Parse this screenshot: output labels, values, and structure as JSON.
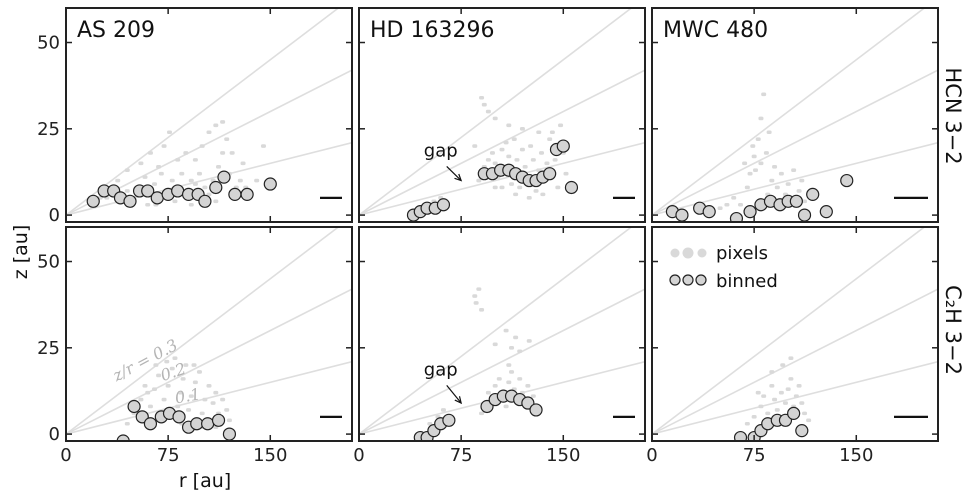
{
  "figure": {
    "xlabel": "r [au]",
    "ylabel": "z [au]",
    "row_labels": [
      "HCN 3−2",
      "C₂H 3−2"
    ],
    "legend": {
      "pixels": "pixels",
      "binned": "binned"
    },
    "colors": {
      "pixels": "#d9d9d9",
      "lines": "#dedede",
      "binned_fill": "#d4d4d4",
      "binned_edge": "#222222",
      "frame": "#222222"
    }
  },
  "chart_data": [
    {
      "type": "scatter",
      "title": "AS 209",
      "row": "HCN 3−2",
      "xlim": [
        0,
        210
      ],
      "ylim": [
        -2,
        60
      ],
      "xticks": [
        0,
        75,
        150
      ],
      "yticks": [
        0,
        25,
        50
      ],
      "ratio_lines": [
        0.1,
        0.2,
        0.3
      ],
      "binned": [
        [
          20,
          4
        ],
        [
          28,
          7
        ],
        [
          35,
          7
        ],
        [
          40,
          5
        ],
        [
          47,
          4
        ],
        [
          54,
          7
        ],
        [
          60,
          7
        ],
        [
          67,
          5
        ],
        [
          75,
          6
        ],
        [
          82,
          7
        ],
        [
          90,
          6
        ],
        [
          97,
          6
        ],
        [
          102,
          4
        ],
        [
          110,
          8
        ],
        [
          116,
          11
        ],
        [
          124,
          6
        ],
        [
          133,
          6
        ],
        [
          150,
          9
        ]
      ],
      "pixels": [
        [
          25,
          5
        ],
        [
          30,
          5
        ],
        [
          40,
          6
        ],
        [
          45,
          7
        ],
        [
          50,
          5
        ],
        [
          55,
          8
        ],
        [
          60,
          6
        ],
        [
          65,
          9
        ],
        [
          70,
          6
        ],
        [
          75,
          5
        ],
        [
          78,
          10
        ],
        [
          80,
          8
        ],
        [
          85,
          6
        ],
        [
          90,
          7
        ],
        [
          95,
          9
        ],
        [
          98,
          12
        ],
        [
          102,
          8
        ],
        [
          105,
          6
        ],
        [
          108,
          10
        ],
        [
          112,
          14
        ],
        [
          115,
          18
        ],
        [
          118,
          22
        ],
        [
          120,
          12
        ],
        [
          125,
          8
        ],
        [
          130,
          15
        ],
        [
          135,
          6
        ],
        [
          140,
          10
        ],
        [
          145,
          20
        ],
        [
          55,
          15
        ],
        [
          62,
          18
        ],
        [
          68,
          14
        ],
        [
          72,
          20
        ],
        [
          76,
          24
        ],
        [
          82,
          16
        ],
        [
          88,
          18
        ],
        [
          95,
          16
        ],
        [
          100,
          20
        ],
        [
          105,
          24
        ],
        [
          110,
          26
        ],
        [
          115,
          27
        ],
        [
          85,
          12
        ],
        [
          70,
          12
        ],
        [
          92,
          10
        ],
        [
          45,
          13
        ],
        [
          38,
          10
        ],
        [
          58,
          11
        ],
        [
          122,
          18
        ],
        [
          128,
          10
        ],
        [
          132,
          8
        ],
        [
          60,
          3
        ],
        [
          66,
          3
        ],
        [
          80,
          4
        ],
        [
          92,
          3
        ],
        [
          100,
          3
        ],
        [
          110,
          4
        ]
      ],
      "annotations": []
    },
    {
      "type": "scatter",
      "title": "HD 163296",
      "row": "HCN 3−2",
      "xlim": [
        0,
        210
      ],
      "ylim": [
        -2,
        60
      ],
      "xticks": [
        0,
        75,
        150
      ],
      "yticks": [
        0,
        25,
        50
      ],
      "ratio_lines": [
        0.1,
        0.2,
        0.3
      ],
      "binned": [
        [
          40,
          0
        ],
        [
          45,
          1
        ],
        [
          50,
          2
        ],
        [
          56,
          2
        ],
        [
          62,
          3
        ],
        [
          92,
          12
        ],
        [
          98,
          12
        ],
        [
          104,
          13
        ],
        [
          110,
          13
        ],
        [
          115,
          12
        ],
        [
          120,
          11
        ],
        [
          125,
          10
        ],
        [
          130,
          10
        ],
        [
          135,
          11
        ],
        [
          140,
          12
        ],
        [
          145,
          19
        ],
        [
          150,
          20
        ],
        [
          156,
          8
        ]
      ],
      "pixels": [
        [
          42,
          1
        ],
        [
          48,
          2
        ],
        [
          55,
          4
        ],
        [
          60,
          5
        ],
        [
          65,
          3
        ],
        [
          88,
          10
        ],
        [
          92,
          14
        ],
        [
          95,
          16
        ],
        [
          98,
          18
        ],
        [
          100,
          15
        ],
        [
          102,
          11
        ],
        [
          105,
          19
        ],
        [
          108,
          21
        ],
        [
          110,
          17
        ],
        [
          112,
          9
        ],
        [
          114,
          22
        ],
        [
          116,
          16
        ],
        [
          118,
          8
        ],
        [
          120,
          19
        ],
        [
          122,
          14
        ],
        [
          124,
          10
        ],
        [
          126,
          20
        ],
        [
          128,
          16
        ],
        [
          130,
          7
        ],
        [
          132,
          13
        ],
        [
          134,
          18
        ],
        [
          136,
          11
        ],
        [
          138,
          15
        ],
        [
          140,
          22
        ],
        [
          142,
          24
        ],
        [
          144,
          16
        ],
        [
          146,
          8
        ],
        [
          148,
          26
        ],
        [
          150,
          18
        ],
        [
          152,
          12
        ],
        [
          135,
          6
        ],
        [
          125,
          5
        ],
        [
          115,
          6
        ],
        [
          105,
          8
        ],
        [
          100,
          8
        ],
        [
          90,
          34
        ],
        [
          92,
          32
        ],
        [
          95,
          30
        ],
        [
          100,
          28
        ],
        [
          85,
          20
        ],
        [
          110,
          26
        ],
        [
          120,
          25
        ],
        [
          132,
          24
        ]
      ],
      "annotations": [
        {
          "text": "gap",
          "tx": 60,
          "ty": 17,
          "ax": 75,
          "ay": 10
        }
      ]
    },
    {
      "type": "scatter",
      "title": "MWC 480",
      "row": "HCN 3−2",
      "xlim": [
        0,
        210
      ],
      "ylim": [
        -2,
        60
      ],
      "xticks": [
        0,
        75,
        150
      ],
      "yticks": [
        0,
        25,
        50
      ],
      "ratio_lines": [
        0.1,
        0.2,
        0.3
      ],
      "binned": [
        [
          15,
          1
        ],
        [
          22,
          0
        ],
        [
          35,
          2
        ],
        [
          42,
          1
        ],
        [
          62,
          -1
        ],
        [
          72,
          1
        ],
        [
          80,
          3
        ],
        [
          87,
          4
        ],
        [
          94,
          3
        ],
        [
          100,
          4
        ],
        [
          106,
          4
        ],
        [
          112,
          0
        ],
        [
          118,
          6
        ],
        [
          128,
          1
        ],
        [
          143,
          10
        ]
      ],
      "pixels": [
        [
          60,
          5
        ],
        [
          65,
          3
        ],
        [
          70,
          8
        ],
        [
          72,
          12
        ],
        [
          75,
          17
        ],
        [
          78,
          22
        ],
        [
          80,
          28
        ],
        [
          82,
          35
        ],
        [
          85,
          6
        ],
        [
          88,
          10
        ],
        [
          90,
          14
        ],
        [
          92,
          8
        ],
        [
          95,
          12
        ],
        [
          98,
          6
        ],
        [
          100,
          9
        ],
        [
          102,
          4
        ],
        [
          104,
          13
        ],
        [
          108,
          7
        ],
        [
          110,
          10
        ],
        [
          112,
          4
        ],
        [
          115,
          6
        ],
        [
          80,
          15
        ],
        [
          76,
          13
        ],
        [
          84,
          18
        ],
        [
          86,
          24
        ],
        [
          74,
          20
        ],
        [
          68,
          15
        ],
        [
          50,
          2
        ],
        [
          55,
          3
        ],
        [
          40,
          1
        ]
      ],
      "annotations": []
    },
    {
      "type": "scatter",
      "title": "",
      "row": "C₂H 3−2",
      "xlim": [
        0,
        210
      ],
      "ylim": [
        -2,
        60
      ],
      "xticks": [
        0,
        75,
        150
      ],
      "yticks": [
        0,
        25,
        50
      ],
      "ratio_lines": [
        0.1,
        0.2,
        0.3
      ],
      "ratio_labels": [
        "z/r = 0.3",
        "0.2",
        "0.1"
      ],
      "binned": [
        [
          42,
          -2
        ],
        [
          50,
          8
        ],
        [
          56,
          5
        ],
        [
          62,
          3
        ],
        [
          70,
          5
        ],
        [
          76,
          6
        ],
        [
          83,
          5
        ],
        [
          90,
          2
        ],
        [
          96,
          3
        ],
        [
          104,
          3
        ],
        [
          112,
          4
        ],
        [
          120,
          0
        ]
      ],
      "pixels": [
        [
          45,
          3
        ],
        [
          50,
          6
        ],
        [
          55,
          10
        ],
        [
          60,
          12
        ],
        [
          62,
          8
        ],
        [
          65,
          13
        ],
        [
          68,
          17
        ],
        [
          70,
          6
        ],
        [
          72,
          10
        ],
        [
          75,
          14
        ],
        [
          78,
          19
        ],
        [
          80,
          22
        ],
        [
          82,
          8
        ],
        [
          84,
          12
        ],
        [
          86,
          16
        ],
        [
          88,
          20
        ],
        [
          90,
          7
        ],
        [
          92,
          11
        ],
        [
          95,
          15
        ],
        [
          98,
          18
        ],
        [
          100,
          6
        ],
        [
          102,
          10
        ],
        [
          105,
          14
        ],
        [
          108,
          9
        ],
        [
          110,
          12
        ],
        [
          112,
          6
        ],
        [
          115,
          10
        ],
        [
          118,
          7
        ],
        [
          120,
          4
        ],
        [
          66,
          20
        ],
        [
          74,
          21
        ],
        [
          94,
          20
        ],
        [
          58,
          14
        ],
        [
          85,
          3
        ],
        [
          100,
          2
        ],
        [
          110,
          2
        ]
      ],
      "annotations": []
    },
    {
      "type": "scatter",
      "title": "",
      "row": "C₂H 3−2",
      "xlim": [
        0,
        210
      ],
      "ylim": [
        -2,
        60
      ],
      "xticks": [
        0,
        75,
        150
      ],
      "yticks": [
        0,
        25,
        50
      ],
      "ratio_lines": [
        0.1,
        0.2,
        0.3
      ],
      "binned": [
        [
          45,
          -1
        ],
        [
          50,
          -1
        ],
        [
          55,
          1
        ],
        [
          60,
          3
        ],
        [
          66,
          4
        ],
        [
          94,
          8
        ],
        [
          100,
          10
        ],
        [
          106,
          11
        ],
        [
          112,
          11
        ],
        [
          118,
          10
        ],
        [
          124,
          9
        ],
        [
          130,
          7
        ]
      ],
      "pixels": [
        [
          52,
          3
        ],
        [
          58,
          5
        ],
        [
          62,
          7
        ],
        [
          90,
          6
        ],
        [
          95,
          12
        ],
        [
          98,
          9
        ],
        [
          100,
          14
        ],
        [
          103,
          16
        ],
        [
          106,
          12
        ],
        [
          108,
          8
        ],
        [
          110,
          15
        ],
        [
          112,
          18
        ],
        [
          114,
          13
        ],
        [
          116,
          9
        ],
        [
          118,
          16
        ],
        [
          120,
          12
        ],
        [
          122,
          8
        ],
        [
          124,
          14
        ],
        [
          126,
          10
        ],
        [
          128,
          11
        ],
        [
          130,
          6
        ],
        [
          85,
          40
        ],
        [
          88,
          42
        ],
        [
          86,
          38
        ],
        [
          90,
          36
        ],
        [
          100,
          26
        ],
        [
          108,
          30
        ],
        [
          112,
          25
        ],
        [
          118,
          24
        ],
        [
          115,
          28
        ],
        [
          125,
          27
        ],
        [
          110,
          20
        ]
      ],
      "annotations": [
        {
          "text": "gap",
          "tx": 60,
          "ty": 17,
          "ax": 75,
          "ay": 9
        }
      ]
    },
    {
      "type": "scatter",
      "title": "",
      "row": "C₂H 3−2",
      "xlim": [
        0,
        210
      ],
      "ylim": [
        -2,
        60
      ],
      "xticks": [
        0,
        75,
        150
      ],
      "yticks": [
        0,
        25,
        50
      ],
      "ratio_lines": [
        0.1,
        0.2,
        0.3
      ],
      "binned": [
        [
          65,
          -1
        ],
        [
          75,
          -1
        ],
        [
          80,
          1
        ],
        [
          85,
          3
        ],
        [
          92,
          4
        ],
        [
          98,
          4
        ],
        [
          104,
          6
        ],
        [
          110,
          1
        ]
      ],
      "pixels": [
        [
          70,
          3
        ],
        [
          75,
          5
        ],
        [
          80,
          8
        ],
        [
          82,
          11
        ],
        [
          85,
          6
        ],
        [
          88,
          14
        ],
        [
          90,
          10
        ],
        [
          92,
          7
        ],
        [
          95,
          12
        ],
        [
          98,
          9
        ],
        [
          100,
          13
        ],
        [
          102,
          16
        ],
        [
          104,
          8
        ],
        [
          106,
          11
        ],
        [
          108,
          14
        ],
        [
          110,
          9
        ],
        [
          112,
          6
        ],
        [
          115,
          4
        ],
        [
          96,
          20
        ],
        [
          102,
          22
        ],
        [
          88,
          18
        ],
        [
          78,
          12
        ]
      ],
      "annotations": []
    }
  ]
}
